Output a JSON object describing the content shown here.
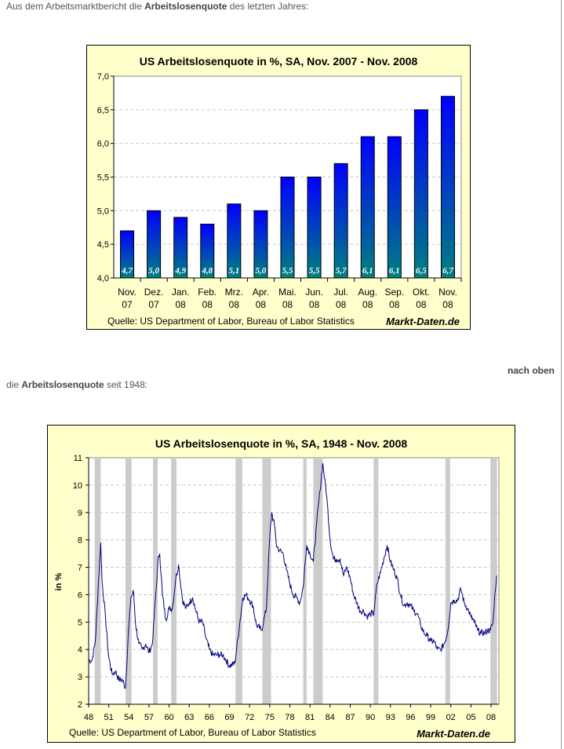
{
  "intro1": {
    "before": "Aus dem Arbeitsmarktbericht die ",
    "bold": "Arbeitslosenquote",
    "after": " des letzten Jahres:"
  },
  "back_to_top": "nach oben",
  "intro2": {
    "before": "die ",
    "bold": "Arbeitslosenquote",
    "after": " seit 1948:"
  },
  "colors": {
    "frame_bg": "#ffffcc",
    "bar_top": "#0000ff",
    "bar_bottom": "#008080",
    "line": "#000080",
    "recession": "#cccccc"
  },
  "chart_data": [
    {
      "type": "bar",
      "title": "US Arbeitslosenquote in %, SA, Nov. 2007 - Nov. 2008",
      "categories": [
        [
          "Nov.",
          "07"
        ],
        [
          "Dez.",
          "07"
        ],
        [
          "Jan.",
          "08"
        ],
        [
          "Feb.",
          "08"
        ],
        [
          "Mrz.",
          "08"
        ],
        [
          "Apr.",
          "08"
        ],
        [
          "Mai.",
          "08"
        ],
        [
          "Jun.",
          "08"
        ],
        [
          "Jul.",
          "08"
        ],
        [
          "Aug.",
          "08"
        ],
        [
          "Sep.",
          "08"
        ],
        [
          "Okt.",
          "08"
        ],
        [
          "Nov.",
          "08"
        ]
      ],
      "values": [
        4.7,
        5.0,
        4.9,
        4.8,
        5.1,
        5.0,
        5.5,
        5.5,
        5.7,
        6.1,
        6.1,
        6.5,
        6.7
      ],
      "data_labels": [
        "4,7",
        "5,0",
        "4,9",
        "4,8",
        "5,1",
        "5,0",
        "5,5",
        "5,5",
        "5,7",
        "6,1",
        "6,1",
        "6,5",
        "6,7"
      ],
      "ylim": [
        4.0,
        7.0
      ],
      "yticks": [
        "4,0",
        "4,5",
        "5,0",
        "5,5",
        "6,0",
        "6,5",
        "7,0"
      ],
      "source": "Quelle: US Department of Labor, Bureau of Labor Statistics",
      "brand": "Markt-Daten.de",
      "grid": true
    },
    {
      "type": "line",
      "title": "US Arbeitslosenquote in %, SA, 1948 - Nov. 2008",
      "ylabel": "in %",
      "ylim": [
        2,
        11
      ],
      "yticks": [
        "2",
        "3",
        "4",
        "5",
        "6",
        "7",
        "8",
        "9",
        "10",
        "11"
      ],
      "xticks": [
        "48",
        "51",
        "54",
        "57",
        "60",
        "63",
        "66",
        "69",
        "72",
        "75",
        "78",
        "81",
        "84",
        "87",
        "90",
        "93",
        "96",
        "99",
        "02",
        "05",
        "08"
      ],
      "x": [
        1948.0,
        1948.5,
        1949.0,
        1949.5,
        1949.8,
        1950.0,
        1950.5,
        1951.0,
        1951.5,
        1952.0,
        1952.5,
        1953.0,
        1953.5,
        1953.9,
        1954.3,
        1954.7,
        1955.0,
        1955.5,
        1956.0,
        1956.5,
        1957.0,
        1957.5,
        1958.0,
        1958.4,
        1958.6,
        1959.0,
        1959.5,
        1960.0,
        1960.5,
        1961.0,
        1961.4,
        1962.0,
        1962.5,
        1963.0,
        1963.5,
        1964.0,
        1964.5,
        1965.0,
        1965.5,
        1966.0,
        1966.5,
        1967.0,
        1967.5,
        1968.0,
        1968.5,
        1969.0,
        1969.8,
        1970.5,
        1971.0,
        1971.5,
        1972.0,
        1972.5,
        1973.0,
        1973.8,
        1974.5,
        1975.0,
        1975.3,
        1975.8,
        1976.0,
        1976.5,
        1977.0,
        1977.5,
        1978.0,
        1978.5,
        1979.0,
        1979.5,
        1980.0,
        1980.5,
        1981.0,
        1981.5,
        1982.0,
        1982.5,
        1982.9,
        1983.5,
        1984.0,
        1984.5,
        1985.0,
        1985.5,
        1986.0,
        1986.5,
        1987.0,
        1987.5,
        1988.0,
        1988.5,
        1989.0,
        1989.5,
        1990.0,
        1990.5,
        1991.0,
        1991.5,
        1992.0,
        1992.5,
        1993.0,
        1993.5,
        1994.0,
        1994.5,
        1995.0,
        1995.5,
        1996.0,
        1996.5,
        1997.0,
        1997.5,
        1998.0,
        1998.5,
        1999.0,
        1999.5,
        2000.0,
        2000.5,
        2001.0,
        2001.5,
        2002.0,
        2002.5,
        2003.0,
        2003.5,
        2004.0,
        2004.5,
        2005.0,
        2005.5,
        2006.0,
        2006.5,
        2007.0,
        2007.5,
        2007.9,
        2008.3,
        2008.6,
        2008.83
      ],
      "y": [
        3.6,
        3.6,
        4.3,
        6.6,
        7.9,
        6.5,
        5.2,
        3.7,
        3.1,
        3.2,
        2.9,
        2.9,
        2.6,
        4.5,
        5.9,
        6.1,
        4.9,
        4.2,
        4.0,
        4.2,
        3.9,
        4.2,
        6.0,
        7.4,
        7.5,
        6.0,
        5.1,
        5.5,
        5.5,
        6.6,
        7.1,
        5.8,
        5.5,
        5.7,
        5.9,
        5.4,
        5.0,
        5.0,
        4.4,
        4.0,
        3.8,
        3.8,
        3.8,
        3.8,
        3.6,
        3.4,
        3.5,
        4.9,
        5.9,
        6.0,
        5.8,
        5.6,
        4.9,
        4.7,
        5.5,
        8.1,
        9.0,
        8.4,
        7.8,
        7.6,
        7.5,
        6.9,
        6.4,
        6.0,
        5.9,
        5.7,
        6.3,
        7.8,
        7.5,
        7.2,
        8.6,
        9.8,
        10.8,
        9.6,
        8.0,
        7.3,
        7.3,
        7.3,
        6.7,
        7.0,
        6.6,
        6.0,
        5.7,
        5.4,
        5.4,
        5.2,
        5.3,
        5.3,
        6.4,
        6.8,
        7.3,
        7.8,
        7.2,
        6.9,
        6.6,
        6.0,
        5.6,
        5.7,
        5.6,
        5.4,
        5.3,
        4.9,
        4.6,
        4.5,
        4.3,
        4.3,
        4.0,
        4.0,
        4.2,
        4.6,
        5.7,
        5.8,
        5.8,
        6.2,
        5.7,
        5.5,
        5.2,
        5.0,
        4.7,
        4.6,
        4.6,
        4.7,
        4.7,
        5.0,
        6.1,
        6.7
      ],
      "recessions": [
        [
          1948.9,
          1949.8
        ],
        [
          1953.5,
          1954.4
        ],
        [
          1957.6,
          1958.3
        ],
        [
          1960.3,
          1961.1
        ],
        [
          1969.9,
          1970.9
        ],
        [
          1973.9,
          1975.2
        ],
        [
          1980.0,
          1980.5
        ],
        [
          1981.5,
          1982.9
        ],
        [
          1990.5,
          1991.2
        ],
        [
          2001.2,
          2001.9
        ],
        [
          2007.9,
          2008.9
        ]
      ],
      "source": "Quelle: US Department of Labor, Bureau of Labor Statistics",
      "brand": "Markt-Daten.de",
      "grid": true
    }
  ]
}
